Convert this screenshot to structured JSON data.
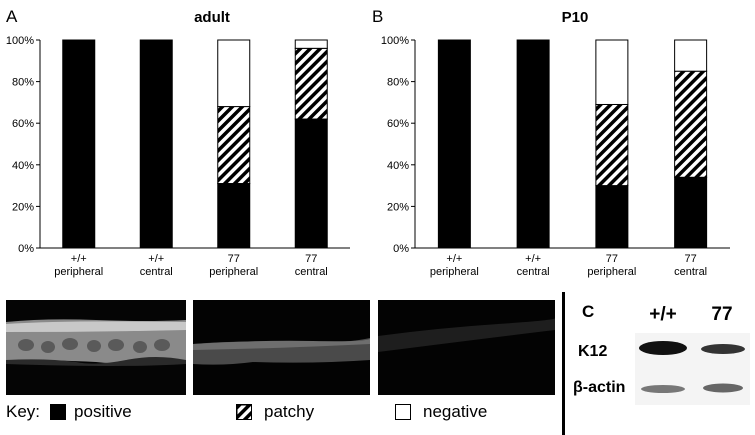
{
  "colors": {
    "positive": "#000000",
    "patchy": "hatched",
    "negative": "#ffffff"
  },
  "panels": {
    "A": {
      "letter": "A"
    },
    "B": {
      "letter": "B"
    },
    "C": {
      "letter": "C"
    }
  },
  "chart_data": [
    {
      "type": "bar",
      "stacked": true,
      "title": "adult",
      "categories": [
        [
          "+/+",
          "peripheral"
        ],
        [
          "+/+",
          "central"
        ],
        [
          "77",
          "peripheral"
        ],
        [
          "77",
          "central"
        ]
      ],
      "series": [
        {
          "name": "positive",
          "values": [
            100,
            100,
            31,
            62
          ]
        },
        {
          "name": "patchy",
          "values": [
            0,
            0,
            37,
            34
          ]
        },
        {
          "name": "negative",
          "values": [
            0,
            0,
            32,
            4
          ]
        }
      ],
      "yticks": [
        "0%",
        "20%",
        "40%",
        "60%",
        "80%",
        "100%"
      ],
      "ylim": [
        0,
        100
      ],
      "grid": false
    },
    {
      "type": "bar",
      "stacked": true,
      "title": "P10",
      "categories": [
        [
          "+/+",
          "peripheral"
        ],
        [
          "+/+",
          "central"
        ],
        [
          "77",
          "peripheral"
        ],
        [
          "77",
          "central"
        ]
      ],
      "series": [
        {
          "name": "positive",
          "values": [
            100,
            100,
            30,
            34
          ]
        },
        {
          "name": "patchy",
          "values": [
            0,
            0,
            39,
            51
          ]
        },
        {
          "name": "negative",
          "values": [
            0,
            0,
            31,
            15
          ]
        }
      ],
      "yticks": [
        "0%",
        "20%",
        "40%",
        "60%",
        "80%",
        "100%"
      ],
      "ylim": [
        0,
        100
      ],
      "grid": false
    }
  ],
  "key": {
    "label": "Key:",
    "positive": "positive",
    "patchy": "patchy",
    "negative": "negative"
  },
  "western_blot": {
    "lanes": [
      "+/+",
      "77"
    ],
    "rows": [
      "K12",
      "β-actin"
    ]
  }
}
